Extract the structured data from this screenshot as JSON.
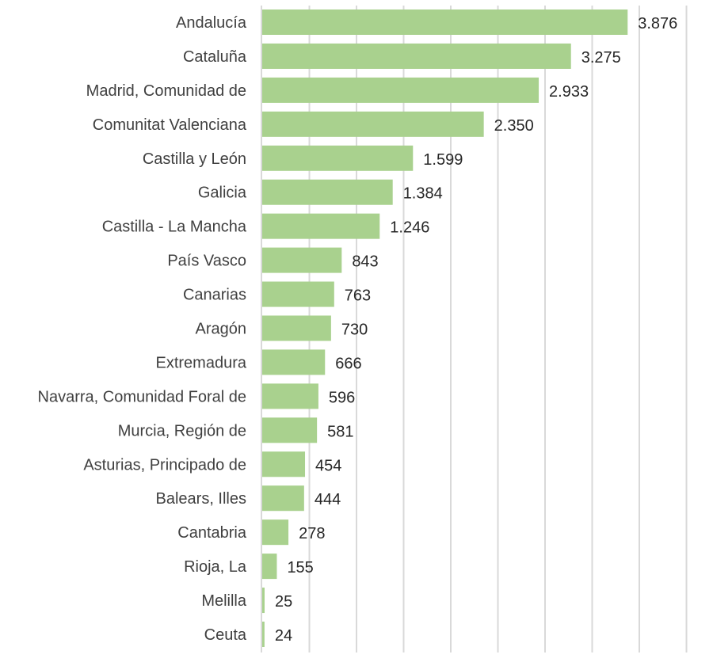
{
  "chart_data": {
    "type": "bar",
    "orientation": "horizontal",
    "title": "",
    "xlabel": "",
    "ylabel": "",
    "xlim": [
      0,
      4500
    ],
    "grid_step": 500,
    "grid": true,
    "bar_color": "#a9d18e",
    "categories": [
      "Andalucía",
      "Cataluña",
      "Madrid, Comunidad de",
      "Comunitat Valenciana",
      "Castilla y León",
      "Galicia",
      "Castilla - La Mancha",
      "País Vasco",
      "Canarias",
      "Aragón",
      "Extremadura",
      "Navarra, Comunidad Foral de",
      "Murcia, Región de",
      "Asturias, Principado de",
      "Balears, Illes",
      "Cantabria",
      "Rioja, La",
      "Melilla",
      "Ceuta"
    ],
    "values": [
      3876,
      3275,
      2933,
      2350,
      1599,
      1384,
      1246,
      843,
      763,
      730,
      666,
      596,
      581,
      454,
      444,
      278,
      155,
      25,
      24
    ],
    "value_labels": [
      "3.876",
      "3.275",
      "2.933",
      "2.350",
      "1.599",
      "1.384",
      "1.246",
      "843",
      "763",
      "730",
      "666",
      "596",
      "581",
      "454",
      "444",
      "278",
      "155",
      "25",
      "24"
    ]
  }
}
